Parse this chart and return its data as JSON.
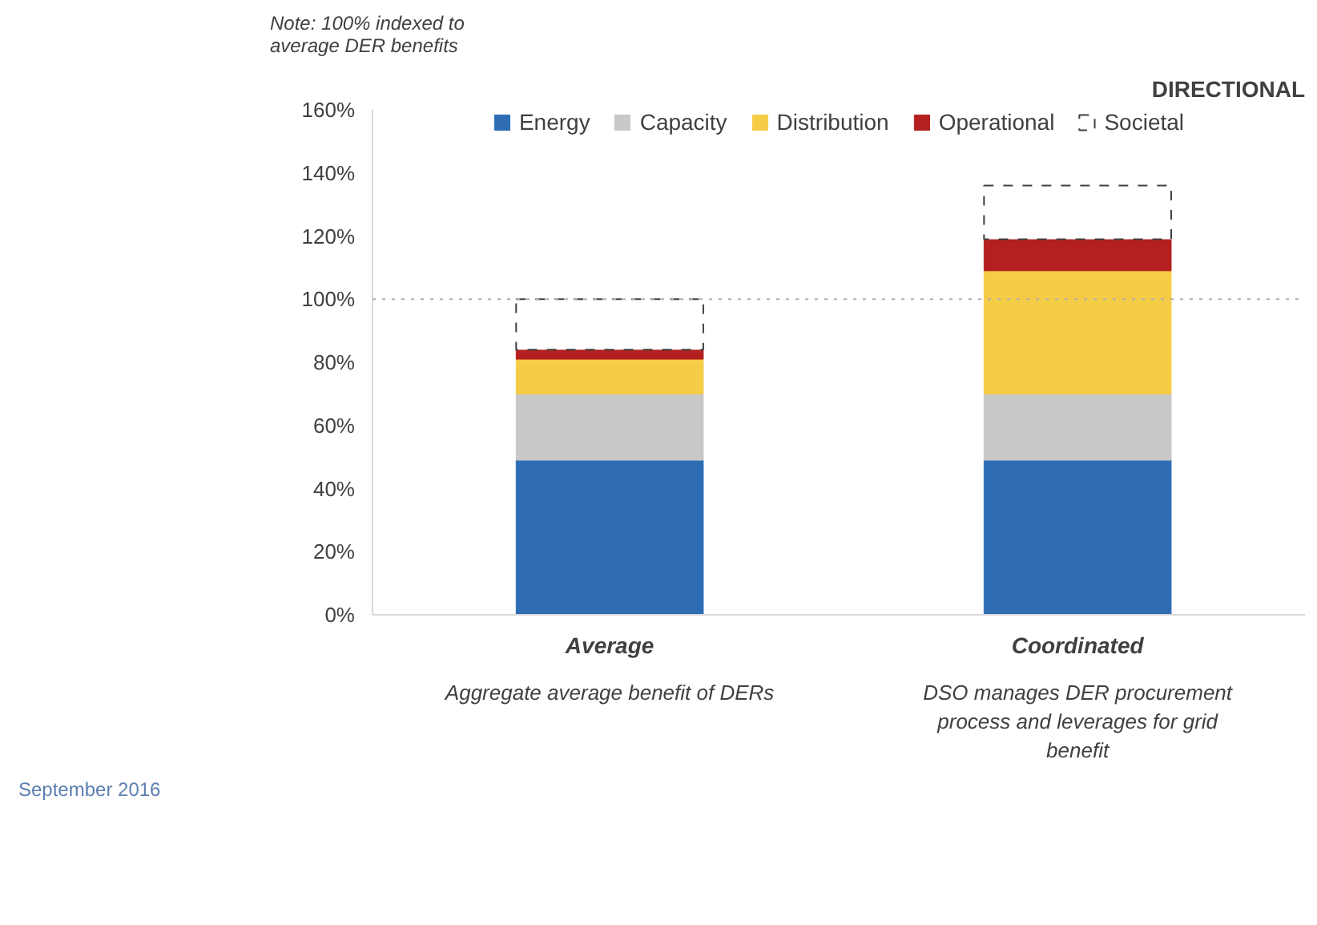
{
  "chart_data": {
    "type": "bar",
    "stacked": true,
    "categories": [
      "Average",
      "Coordinated"
    ],
    "series": [
      {
        "name": "Energy",
        "color": "#2e6db4",
        "values": [
          49,
          49
        ]
      },
      {
        "name": "Capacity",
        "color": "#c8c8c8",
        "values": [
          21,
          21
        ]
      },
      {
        "name": "Distribution",
        "color": "#f5cc46",
        "values": [
          11,
          39
        ]
      },
      {
        "name": "Operational",
        "color": "#b3201f",
        "values": [
          3,
          10
        ]
      },
      {
        "name": "Societal",
        "color": "#ffffff",
        "line_style": "dashed",
        "values": [
          16,
          17
        ]
      }
    ],
    "ylim": [
      0,
      160
    ],
    "yticks": [
      {
        "value": 0,
        "label": "0%"
      },
      {
        "value": 20,
        "label": "20%"
      },
      {
        "value": 40,
        "label": "40%"
      },
      {
        "value": 60,
        "label": "60%"
      },
      {
        "value": 80,
        "label": "80%"
      },
      {
        "value": 100,
        "label": "100%"
      },
      {
        "value": 120,
        "label": "120%"
      },
      {
        "value": 140,
        "label": "140%"
      },
      {
        "value": 160,
        "label": "160%"
      }
    ],
    "ref_lines": [
      {
        "axis": "y",
        "value": 100,
        "label": null,
        "color": "#b0b0b0",
        "line_style": "dotted"
      }
    ],
    "grid": false,
    "legend": "top",
    "annotations": [
      "Note: 100% indexed to\naverage DER benefits",
      "DIRECTIONAL",
      "Aggregate average benefit of DERs",
      "DSO manages DER procurement\nprocess and leverages for grid\nbenefit",
      "September 2016"
    ]
  }
}
